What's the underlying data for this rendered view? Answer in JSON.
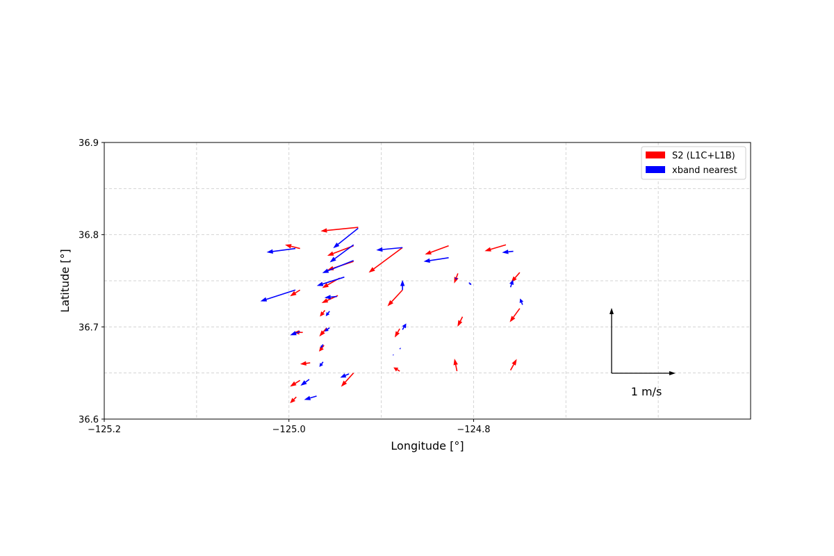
{
  "chart_data": {
    "type": "quiver",
    "title": "",
    "xlabel": "Longitude [°]",
    "ylabel": "Latitude [°]",
    "xlim": [
      -125.2,
      -124.5
    ],
    "ylim": [
      36.6,
      36.9
    ],
    "xticks": [
      -125.2,
      -125.0,
      -124.8
    ],
    "xtick_labels": [
      "−125.2",
      "−125.0",
      "−124.8"
    ],
    "yticks": [
      36.6,
      36.7,
      36.8,
      36.9
    ],
    "ytick_labels": [
      "36.6",
      "36.7",
      "36.8",
      "36.9"
    ],
    "grid": true,
    "legend_position": "top-right",
    "scale_label": "1 m/s",
    "series": [
      {
        "name": "S2 (L1C+L1B)",
        "color": "#ff0000",
        "vectors": [
          {
            "x": -124.925,
            "y": 36.808,
            "u": -0.6,
            "v": -0.06
          },
          {
            "x": -124.93,
            "y": 36.788,
            "u": -0.42,
            "v": -0.16
          },
          {
            "x": -124.93,
            "y": 36.771,
            "u": -0.42,
            "v": -0.14
          },
          {
            "x": -124.945,
            "y": 36.753,
            "u": -0.28,
            "v": -0.16
          },
          {
            "x": -124.947,
            "y": 36.734,
            "u": -0.26,
            "v": -0.12
          },
          {
            "x": -124.988,
            "y": 36.785,
            "u": -0.24,
            "v": 0.06
          },
          {
            "x": -124.988,
            "y": 36.74,
            "u": -0.16,
            "v": -0.1
          },
          {
            "x": -124.985,
            "y": 36.694,
            "u": -0.14,
            "v": 0.0
          },
          {
            "x": -124.961,
            "y": 36.718,
            "u": -0.08,
            "v": -0.1
          },
          {
            "x": -124.959,
            "y": 36.699,
            "u": -0.12,
            "v": -0.14
          },
          {
            "x": -124.962,
            "y": 36.68,
            "u": -0.08,
            "v": -0.1
          },
          {
            "x": -124.977,
            "y": 36.661,
            "u": -0.16,
            "v": -0.02
          },
          {
            "x": -124.988,
            "y": 36.642,
            "u": -0.16,
            "v": -0.1
          },
          {
            "x": -124.992,
            "y": 36.624,
            "u": -0.1,
            "v": -0.1
          },
          {
            "x": -124.93,
            "y": 36.65,
            "u": -0.2,
            "v": -0.22
          },
          {
            "x": -124.877,
            "y": 36.786,
            "u": -0.54,
            "v": -0.4
          },
          {
            "x": -124.877,
            "y": 36.74,
            "u": -0.24,
            "v": -0.26
          },
          {
            "x": -124.88,
            "y": 36.698,
            "u": -0.08,
            "v": -0.14
          },
          {
            "x": -124.88,
            "y": 36.652,
            "u": -0.1,
            "v": 0.06
          },
          {
            "x": -124.827,
            "y": 36.788,
            "u": -0.38,
            "v": -0.14
          },
          {
            "x": -124.817,
            "y": 36.758,
            "u": -0.06,
            "v": -0.16
          },
          {
            "x": -124.812,
            "y": 36.711,
            "u": -0.08,
            "v": -0.16
          },
          {
            "x": -124.818,
            "y": 36.652,
            "u": -0.04,
            "v": 0.2
          },
          {
            "x": -124.765,
            "y": 36.789,
            "u": -0.34,
            "v": -0.1
          },
          {
            "x": -124.75,
            "y": 36.759,
            "u": -0.14,
            "v": -0.16
          },
          {
            "x": -124.75,
            "y": 36.72,
            "u": -0.16,
            "v": -0.22
          },
          {
            "x": -124.76,
            "y": 36.653,
            "u": 0.1,
            "v": 0.18
          }
        ]
      },
      {
        "name": "xband nearest",
        "color": "#0000ff",
        "vectors": [
          {
            "x": -124.925,
            "y": 36.807,
            "u": -0.4,
            "v": -0.32
          },
          {
            "x": -124.93,
            "y": 36.789,
            "u": -0.38,
            "v": -0.28
          },
          {
            "x": -124.93,
            "y": 36.772,
            "u": -0.5,
            "v": -0.2
          },
          {
            "x": -124.94,
            "y": 36.754,
            "u": -0.44,
            "v": -0.14
          },
          {
            "x": -124.993,
            "y": 36.785,
            "u": -0.46,
            "v": -0.06
          },
          {
            "x": -124.993,
            "y": 36.74,
            "u": -0.56,
            "v": -0.18
          },
          {
            "x": -124.948,
            "y": 36.733,
            "u": -0.2,
            "v": -0.02
          },
          {
            "x": -124.988,
            "y": 36.695,
            "u": -0.16,
            "v": -0.06
          },
          {
            "x": -124.956,
            "y": 36.717,
            "u": -0.06,
            "v": -0.08
          },
          {
            "x": -124.956,
            "y": 36.699,
            "u": -0.08,
            "v": -0.06
          },
          {
            "x": -124.963,
            "y": 36.681,
            "u": -0.04,
            "v": -0.06
          },
          {
            "x": -124.963,
            "y": 36.662,
            "u": -0.06,
            "v": -0.08
          },
          {
            "x": -124.978,
            "y": 36.643,
            "u": -0.14,
            "v": -0.1
          },
          {
            "x": -124.97,
            "y": 36.625,
            "u": -0.2,
            "v": -0.06
          },
          {
            "x": -124.935,
            "y": 36.649,
            "u": -0.14,
            "v": -0.06
          },
          {
            "x": -124.877,
            "y": 36.786,
            "u": -0.42,
            "v": -0.04
          },
          {
            "x": -124.877,
            "y": 36.74,
            "u": 0.0,
            "v": 0.16
          },
          {
            "x": -124.877,
            "y": 36.697,
            "u": 0.06,
            "v": 0.1
          },
          {
            "x": -124.88,
            "y": 36.676,
            "u": 0.02,
            "v": 0.02
          },
          {
            "x": -124.887,
            "y": 36.67,
            "u": 0.0,
            "v": -0.02
          },
          {
            "x": -124.827,
            "y": 36.775,
            "u": -0.4,
            "v": -0.06
          },
          {
            "x": -124.82,
            "y": 36.753,
            "u": 0.04,
            "v": -0.02
          },
          {
            "x": -124.805,
            "y": 36.748,
            "u": 0.04,
            "v": -0.04
          },
          {
            "x": -124.757,
            "y": 36.782,
            "u": -0.18,
            "v": -0.02
          },
          {
            "x": -124.76,
            "y": 36.743,
            "u": 0.04,
            "v": 0.12
          },
          {
            "x": -124.747,
            "y": 36.724,
            "u": -0.04,
            "v": 0.1
          }
        ]
      }
    ]
  }
}
